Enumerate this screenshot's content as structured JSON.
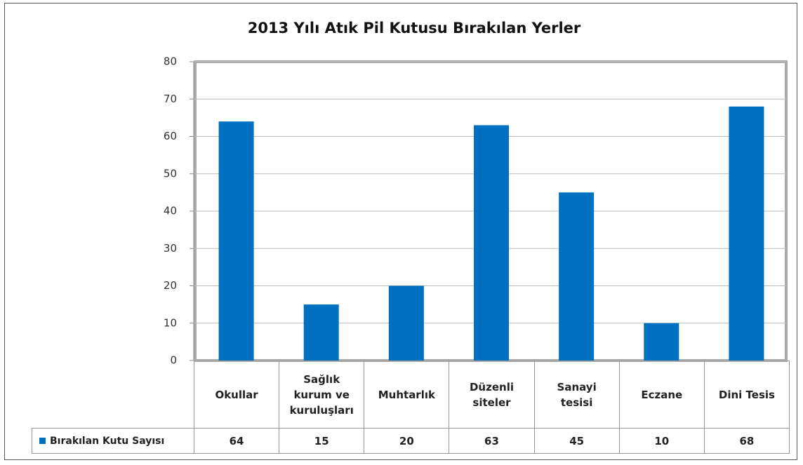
{
  "chart_data": {
    "type": "bar",
    "title": "2013 Yılı Atık Pil Kutusu Bırakılan Yerler",
    "categories": [
      "Okullar",
      "Sağlık kurum ve kuruluşları",
      "Muhtarlık",
      "Düzenli siteler",
      "Sanayi tesisi",
      "Eczane",
      "Dini Tesis"
    ],
    "series": [
      {
        "name": "Bırakılan Kutu Sayısı",
        "color": "#0070c0",
        "values": [
          64,
          15,
          20,
          63,
          45,
          10,
          68
        ]
      }
    ],
    "ylim": [
      0,
      80
    ],
    "yticks": [
      0,
      10,
      20,
      30,
      40,
      50,
      60,
      70,
      80
    ],
    "grid": true
  }
}
